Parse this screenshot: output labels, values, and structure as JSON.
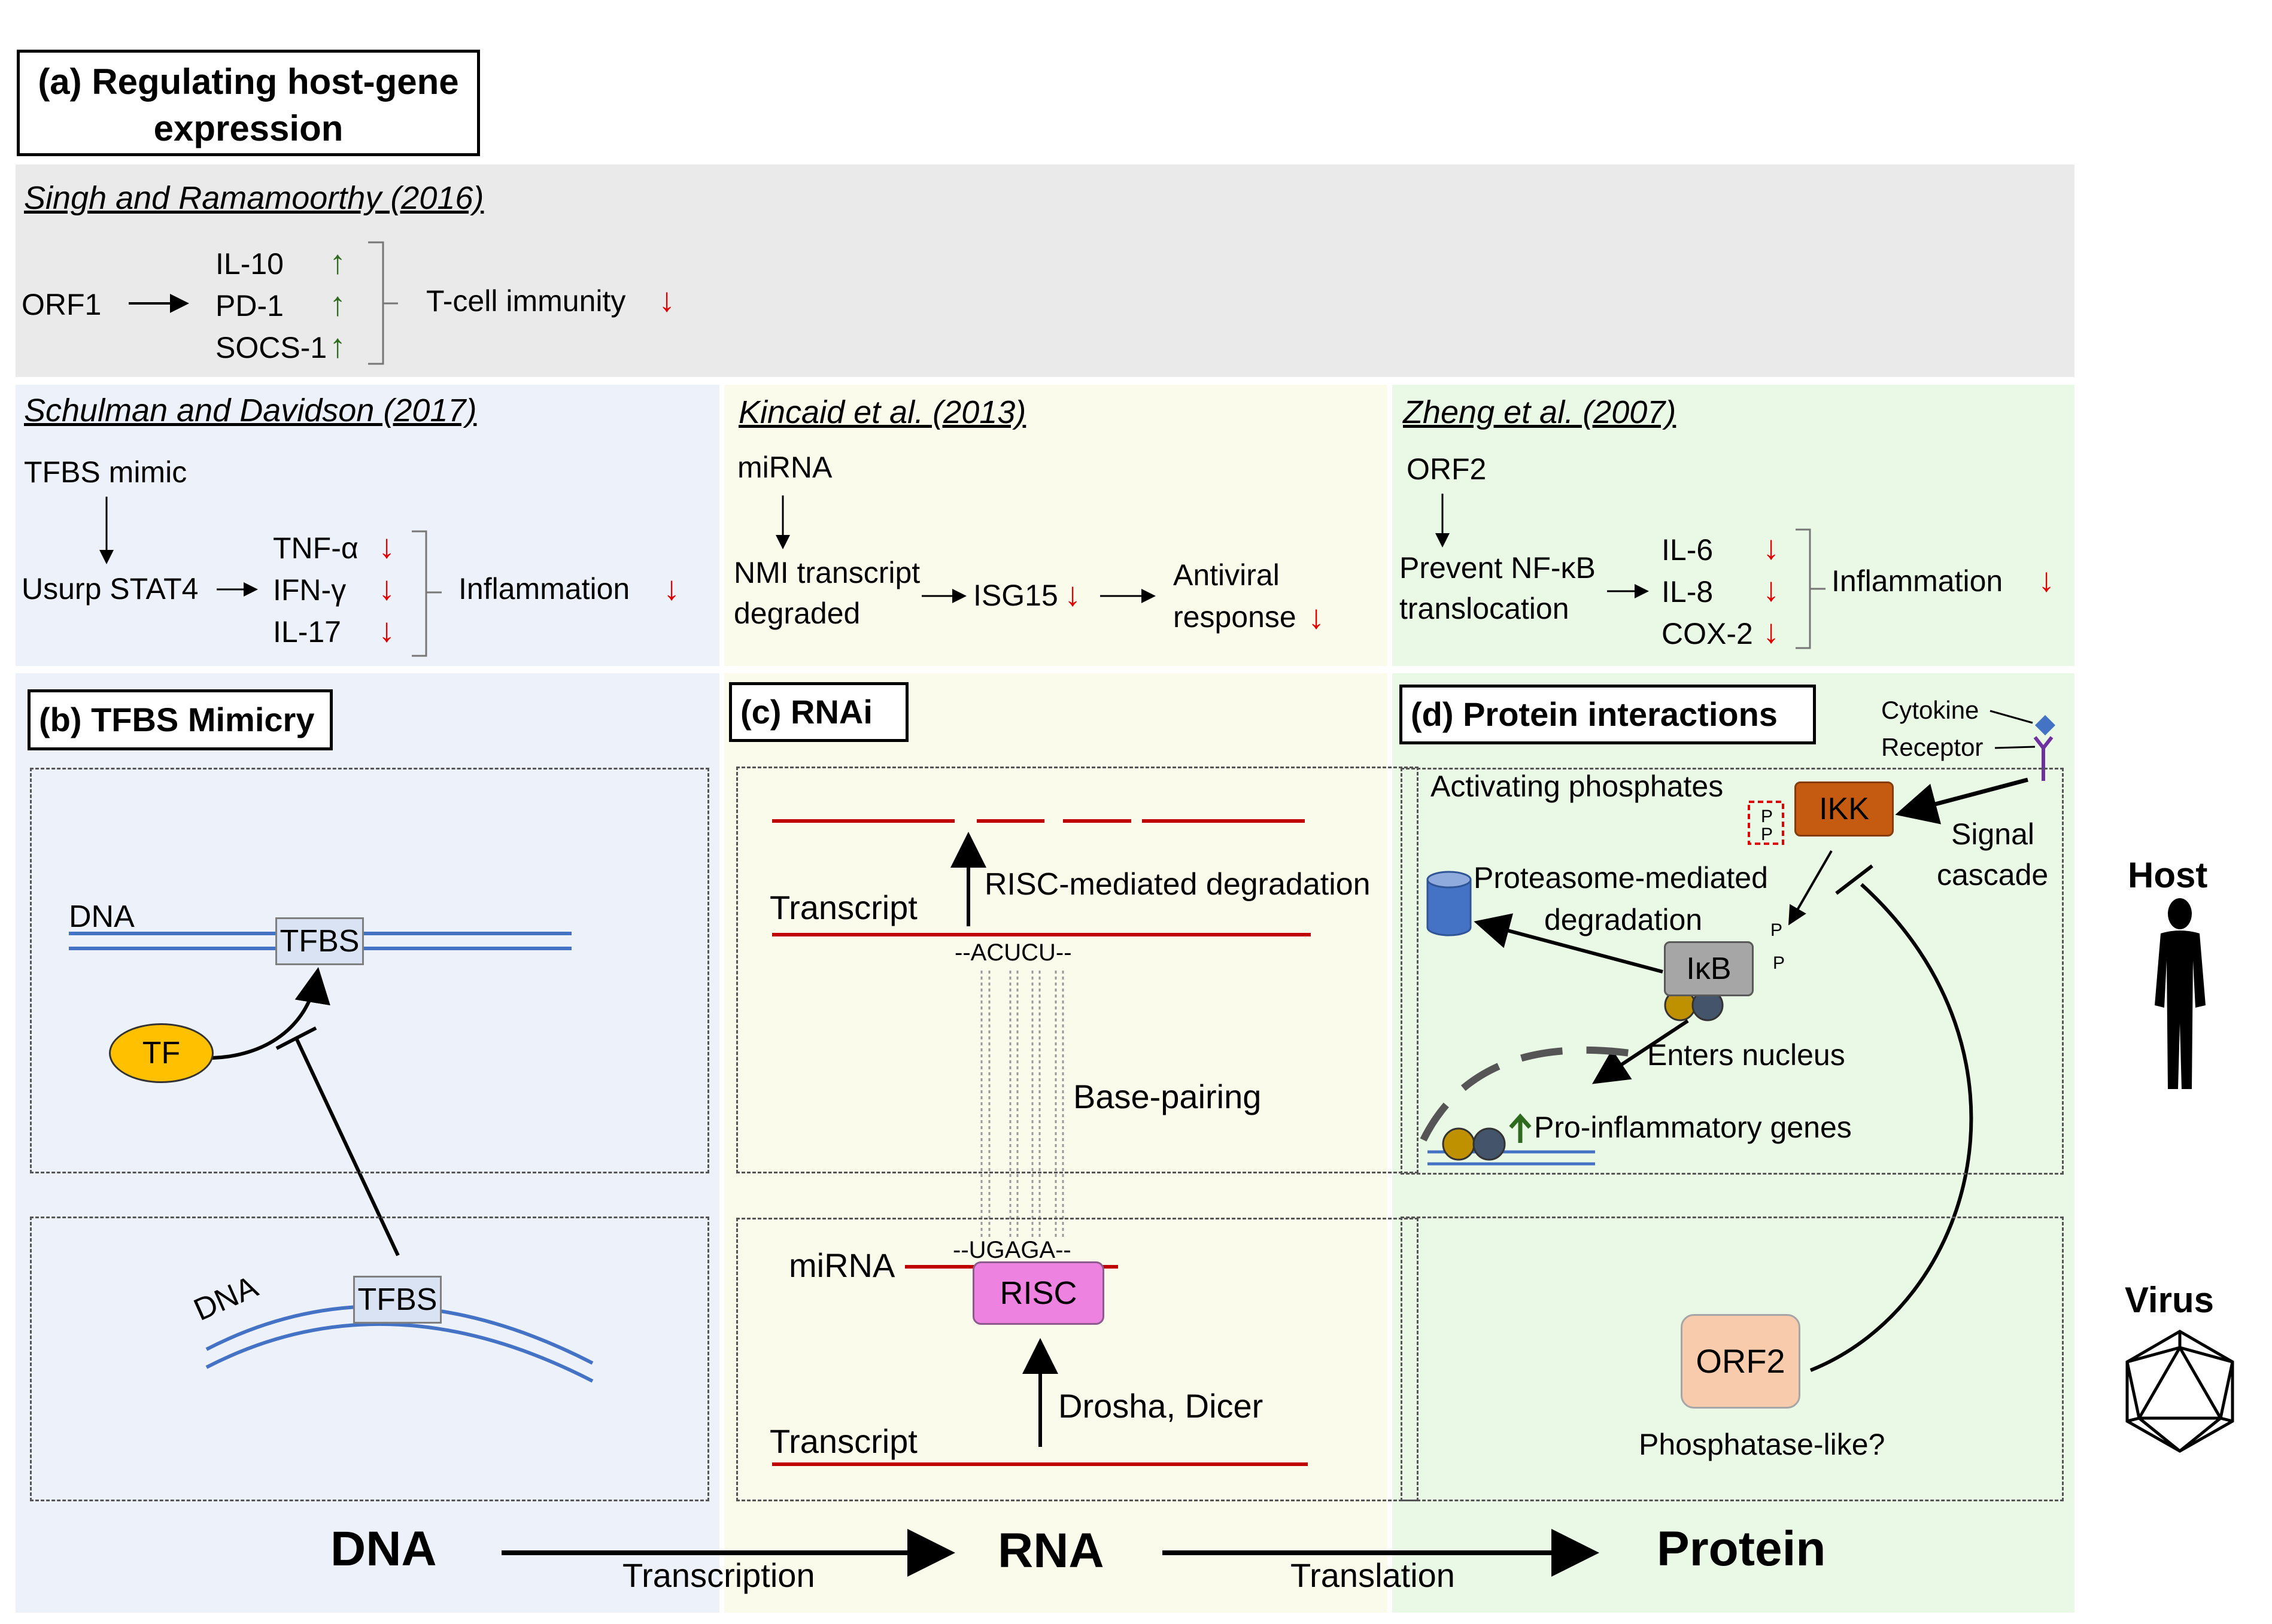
{
  "panel_a": {
    "label": "(a) Regulating host-gene expression",
    "label_line1": "(a) Regulating host-gene",
    "label_line2": "expression",
    "singh": {
      "citation": "Singh and Ramamoorthy (2016)",
      "source": "ORF1",
      "targets": [
        "IL-10",
        "PD-1",
        "SOCS-1"
      ],
      "outcome": "T-cell immunity"
    },
    "schulman": {
      "citation": "Schulman and Davidson (2017)",
      "source": "TFBS mimic",
      "step": "Usurp STAT4",
      "targets": [
        "TNF-α",
        "IFN-γ",
        "IL-17"
      ],
      "outcome": "Inflammation"
    },
    "kincaid": {
      "citation": "Kincaid et al. (2013)",
      "source": "miRNA",
      "step_line1": "NMI transcript",
      "step_line2": "degraded",
      "target": "ISG15",
      "outcome_line1": "Antiviral",
      "outcome_line2": "response"
    },
    "zheng": {
      "citation": "Zheng et al. (2007)",
      "source": "ORF2",
      "step_line1": "Prevent NF-κB",
      "step_line2": "translocation",
      "targets": [
        "IL-6",
        "IL-8",
        "COX-2"
      ],
      "outcome": "Inflammation"
    }
  },
  "panel_b": {
    "label": "(b) TFBS Mimicry",
    "host_dna": "DNA",
    "host_tfbs": "TFBS",
    "tf": "TF",
    "virus_dna": "DNA",
    "virus_tfbs": "TFBS"
  },
  "panel_c": {
    "label": "(c) RNAi",
    "transcript_top": "Transcript",
    "degradation": "RISC-mediated degradation",
    "seq_top": "--ACUCU--",
    "base_pairing": "Base-pairing",
    "mirna": "miRNA",
    "seq_bottom": "--UGAGA--",
    "risc": "RISC",
    "processing": "Drosha, Dicer",
    "transcript_bottom": "Transcript"
  },
  "panel_d": {
    "label": "(d) Protein interactions",
    "cytokine": "Cytokine",
    "receptor": "Receptor",
    "activating": "Activating phosphates",
    "p1": "P",
    "p2": "P",
    "ikk": "IKK",
    "signal_line1": "Signal",
    "signal_line2": "cascade",
    "proteasome_line1": "Proteasome-mediated",
    "proteasome_line2": "degradation",
    "ikb": "IκB",
    "ikb_p1": "P",
    "ikb_p2": "P",
    "enters": "Enters nucleus",
    "genes": "Pro-inflammatory genes",
    "orf2": "ORF2",
    "phosphatase": "Phosphatase-like?"
  },
  "side": {
    "host": "Host",
    "virus": "Virus"
  },
  "bottom": {
    "dna": "DNA",
    "transcription": "Transcription",
    "rna": "RNA",
    "translation": "Translation",
    "protein": "Protein"
  },
  "colors": {
    "grey_panel": "#eaeaea",
    "blue_panel": "#edf2fa",
    "yellow_panel": "#fbfbeb",
    "green_panel": "#eaf8e6",
    "up_arrow": "#2e6b1f",
    "down_arrow": "#e00000",
    "dna_blue": "#4472c4",
    "rna_red": "#c00000",
    "tf_yellow": "#ffc000",
    "risc_pink": "#ee82e0",
    "ikk_orange": "#c55a11",
    "ikb_grey": "#a6a6a6",
    "orf2_peach": "#f8cbad",
    "proteasome_blue": "#4472c4"
  }
}
